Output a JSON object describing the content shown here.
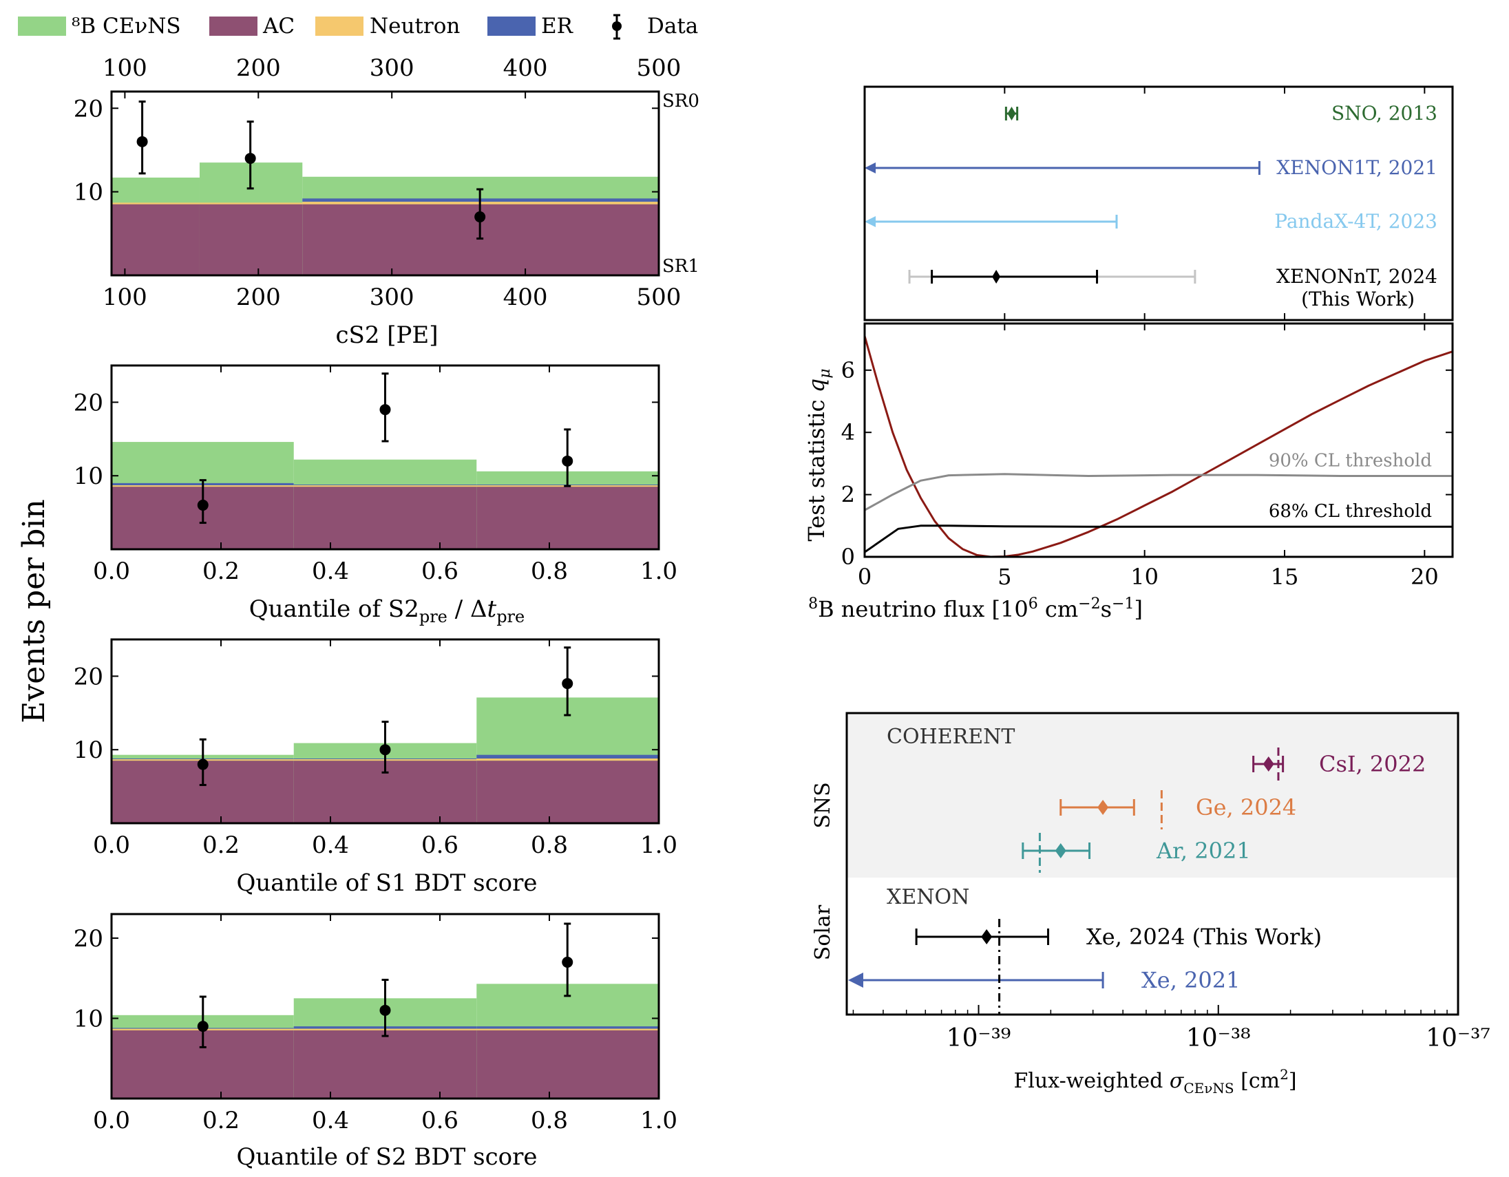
{
  "colors": {
    "cevns": "#94d487",
    "ac": "#8e5072",
    "neutron": "#f5c86e",
    "er": "#4a64af",
    "data": "#000000",
    "sno": "#2c6a30",
    "xenon1t": "#4a64af",
    "pandax": "#86c9ee",
    "xenonnt": "#000000",
    "xenonnt_outer": "#c4c4c4",
    "curve": "#8b1a14",
    "cl90": "#8a8a8a",
    "cl68": "#000000",
    "csi": "#7a1f58",
    "ge": "#dc7c44",
    "ar": "#3f9898",
    "xe2024": "#000000",
    "xe2021": "#4a64af",
    "sns_band": "#f2f2f2"
  },
  "legend": [
    {
      "label": "⁸B CEνNS",
      "kind": "patch",
      "color_key": "cevns"
    },
    {
      "label": "AC",
      "kind": "patch",
      "color_key": "ac"
    },
    {
      "label": "Neutron",
      "kind": "patch",
      "color_key": "neutron"
    },
    {
      "label": "ER",
      "kind": "patch",
      "color_key": "er"
    },
    {
      "label": "Data",
      "kind": "errorbar",
      "color_key": "data"
    }
  ],
  "shared_ylabel": "Events per bin",
  "chart_data": [
    {
      "type": "bar",
      "subtype": "stacked-histogram",
      "id": "cs2",
      "xlabel": "cS2 [PE]",
      "xlim": [
        90,
        500
      ],
      "ylim": [
        0,
        22
      ],
      "xticks": [
        100,
        200,
        300,
        400,
        500
      ],
      "yticks": [
        10,
        20
      ],
      "top_xticks": [
        100,
        200,
        300,
        400,
        500
      ],
      "labels_right": [
        "SR0",
        "SR1"
      ],
      "bins": [
        [
          90,
          156
        ],
        [
          156,
          233
        ],
        [
          233,
          500
        ]
      ],
      "stack": {
        "ac": [
          8.5,
          8.5,
          8.5
        ],
        "neutron": [
          0.2,
          0.2,
          0.3
        ],
        "er": [
          0.0,
          0.0,
          0.4
        ],
        "total": [
          11.7,
          13.5,
          11.8
        ]
      },
      "data_points": [
        {
          "x": 113,
          "y": 16,
          "err": [
            3.8,
            4.8
          ]
        },
        {
          "x": 194,
          "y": 14,
          "err": [
            3.6,
            4.4
          ]
        },
        {
          "x": 366,
          "y": 7,
          "err": [
            2.6,
            3.3
          ]
        }
      ]
    },
    {
      "type": "bar",
      "subtype": "stacked-histogram",
      "id": "s2pre",
      "xlabel": "Quantile of S2pre / Δtpre",
      "xlim": [
        0,
        1
      ],
      "ylim": [
        0,
        25
      ],
      "xticks": [
        "0.0",
        "0.2",
        "0.4",
        "0.6",
        "0.8",
        "1.0"
      ],
      "yticks": [
        10,
        20
      ],
      "bins": [
        [
          0,
          0.333
        ],
        [
          0.333,
          0.667
        ],
        [
          0.667,
          1
        ]
      ],
      "stack": {
        "ac": [
          8.5,
          8.5,
          8.5
        ],
        "neutron": [
          0.2,
          0.2,
          0.2
        ],
        "er": [
          0.3,
          0.1,
          0.1
        ],
        "total": [
          14.6,
          12.2,
          10.6
        ]
      },
      "data_points": [
        {
          "x": 0.167,
          "y": 6,
          "err": [
            2.4,
            3.4
          ]
        },
        {
          "x": 0.5,
          "y": 19,
          "err": [
            4.3,
            4.9
          ]
        },
        {
          "x": 0.833,
          "y": 12,
          "err": [
            3.4,
            4.3
          ]
        }
      ]
    },
    {
      "type": "bar",
      "subtype": "stacked-histogram",
      "id": "s1bdt",
      "xlabel": "Quantile of S1 BDT score",
      "xlim": [
        0,
        1
      ],
      "ylim": [
        0,
        25
      ],
      "xticks": [
        "0.0",
        "0.2",
        "0.4",
        "0.6",
        "0.8",
        "1.0"
      ],
      "yticks": [
        10,
        20
      ],
      "bins": [
        [
          0,
          0.333
        ],
        [
          0.333,
          0.667
        ],
        [
          0.667,
          1
        ]
      ],
      "stack": {
        "ac": [
          8.5,
          8.5,
          8.5
        ],
        "neutron": [
          0.2,
          0.2,
          0.3
        ],
        "er": [
          0.1,
          0.1,
          0.5
        ],
        "total": [
          9.3,
          10.9,
          17.1
        ]
      },
      "data_points": [
        {
          "x": 0.167,
          "y": 8,
          "err": [
            2.8,
            3.4
          ]
        },
        {
          "x": 0.5,
          "y": 10,
          "err": [
            3.1,
            3.8
          ]
        },
        {
          "x": 0.833,
          "y": 19,
          "err": [
            4.3,
            4.9
          ]
        }
      ]
    },
    {
      "type": "bar",
      "subtype": "stacked-histogram",
      "id": "s2bdt",
      "xlabel": "Quantile of S2 BDT score",
      "xlim": [
        0,
        1
      ],
      "ylim": [
        0,
        23
      ],
      "xticks": [
        "0.0",
        "0.2",
        "0.4",
        "0.6",
        "0.8",
        "1.0"
      ],
      "yticks": [
        10,
        20
      ],
      "bins": [
        [
          0,
          0.333
        ],
        [
          0.333,
          0.667
        ],
        [
          0.667,
          1
        ]
      ],
      "stack": {
        "ac": [
          8.5,
          8.5,
          8.5
        ],
        "neutron": [
          0.2,
          0.2,
          0.2
        ],
        "er": [
          0.1,
          0.3,
          0.3
        ],
        "total": [
          10.4,
          12.5,
          14.3
        ]
      },
      "data_points": [
        {
          "x": 0.167,
          "y": 9,
          "err": [
            2.6,
            3.7
          ]
        },
        {
          "x": 0.5,
          "y": 11,
          "err": [
            3.2,
            3.8
          ]
        },
        {
          "x": 0.833,
          "y": 17,
          "err": [
            4.2,
            4.8
          ]
        }
      ]
    },
    {
      "type": "scatter",
      "subtype": "flux-measurements",
      "id": "flux",
      "xlim": [
        0,
        21
      ],
      "entries": [
        {
          "label": "SNO, 2013",
          "value": 5.25,
          "low": 5.05,
          "high": 5.45,
          "kind": "point",
          "color_key": "sno"
        },
        {
          "label": "XENON1T, 2021",
          "limit": 14.1,
          "kind": "upper-limit",
          "color_key": "xenon1t"
        },
        {
          "label": "PandaX-4T, 2023",
          "limit": 9.0,
          "kind": "upper-limit",
          "color_key": "pandax"
        },
        {
          "label": "XENONnT, 2024",
          "sublabel": "(This Work)",
          "value": 4.7,
          "low": 2.4,
          "high": 8.3,
          "outer_low": 1.6,
          "outer_high": 11.8,
          "kind": "point",
          "color_key": "xenonnt"
        }
      ]
    },
    {
      "type": "line",
      "id": "teststat",
      "xlabel": "⁸B neutrino flux [10⁶ cm⁻²s⁻¹]",
      "ylabel": "Test statistic q_μ",
      "xlim": [
        0,
        21
      ],
      "ylim": [
        0,
        7.5
      ],
      "xticks": [
        0,
        5,
        10,
        15,
        20
      ],
      "yticks": [
        0,
        2,
        4,
        6
      ],
      "series": [
        {
          "name": "q_mu",
          "color_key": "curve",
          "points": [
            [
              0,
              7.1
            ],
            [
              0.5,
              5.5
            ],
            [
              1,
              4.0
            ],
            [
              1.5,
              2.8
            ],
            [
              2,
              1.9
            ],
            [
              2.5,
              1.15
            ],
            [
              3,
              0.6
            ],
            [
              3.5,
              0.25
            ],
            [
              4,
              0.06
            ],
            [
              4.5,
              0.0
            ],
            [
              5,
              0.01
            ],
            [
              5.5,
              0.07
            ],
            [
              6,
              0.17
            ],
            [
              7,
              0.45
            ],
            [
              8,
              0.8
            ],
            [
              9,
              1.2
            ],
            [
              10,
              1.65
            ],
            [
              11,
              2.1
            ],
            [
              12,
              2.6
            ],
            [
              13,
              3.1
            ],
            [
              14,
              3.6
            ],
            [
              15,
              4.1
            ],
            [
              16,
              4.6
            ],
            [
              17,
              5.05
            ],
            [
              18,
              5.5
            ],
            [
              19,
              5.9
            ],
            [
              20,
              6.3
            ],
            [
              21,
              6.6
            ]
          ]
        },
        {
          "name": "90% CL threshold",
          "color_key": "cl90",
          "points": [
            [
              0,
              1.5
            ],
            [
              1,
              2.0
            ],
            [
              2,
              2.45
            ],
            [
              3,
              2.62
            ],
            [
              5,
              2.66
            ],
            [
              8,
              2.6
            ],
            [
              11,
              2.63
            ],
            [
              14,
              2.63
            ],
            [
              17,
              2.6
            ],
            [
              21,
              2.6
            ]
          ]
        },
        {
          "name": "68% CL threshold",
          "color_key": "cl68",
          "points": [
            [
              0,
              0.15
            ],
            [
              1.2,
              0.9
            ],
            [
              2,
              1.0
            ],
            [
              3,
              1.0
            ],
            [
              5,
              0.98
            ],
            [
              8,
              0.97
            ],
            [
              12,
              0.97
            ],
            [
              16,
              0.97
            ],
            [
              21,
              0.97
            ]
          ]
        }
      ],
      "annotations": [
        "90% CL threshold",
        "68% CL threshold"
      ]
    },
    {
      "type": "scatter",
      "subtype": "cross-section-comparison",
      "id": "xsec",
      "xscale": "log",
      "xlim_log10": [
        -39.55,
        -37.0
      ],
      "xtick_exponents": [
        -39,
        -38,
        -37
      ],
      "xticks": [
        "10⁻³⁹",
        "10⁻³⁸",
        "10⁻³⁷"
      ],
      "xlabel": "Flux-weighted σCEνNS  [cm²]",
      "groups": [
        {
          "label": "SNS",
          "panel_label": "COHERENT",
          "shaded": true
        },
        {
          "label": "Solar",
          "panel_label": "XENON",
          "shaded": false
        }
      ],
      "entries": [
        {
          "label": "CsI, 2022",
          "group": "SNS",
          "value": 1.62e-38,
          "low": 1.4e-38,
          "high": 1.86e-38,
          "prediction": 1.78e-38,
          "color_key": "csi"
        },
        {
          "label": "Ge, 2024",
          "group": "SNS",
          "value": 3.3e-39,
          "low": 2.2e-39,
          "high": 4.45e-39,
          "prediction": 5.8e-39,
          "color_key": "ge"
        },
        {
          "label": "Ar, 2021",
          "group": "SNS",
          "value": 2.2e-39,
          "low": 1.53e-39,
          "high": 2.9e-39,
          "prediction": 1.8e-39,
          "color_key": "ar"
        },
        {
          "label": "Xe, 2024 (This Work)",
          "group": "Solar",
          "value": 1.08e-39,
          "low": 5.5e-40,
          "high": 1.95e-39,
          "prediction": 1.22e-39,
          "color_key": "xe2024"
        },
        {
          "label": "Xe, 2021",
          "group": "Solar",
          "limit": 3.3e-39,
          "color_key": "xe2021"
        }
      ]
    }
  ]
}
